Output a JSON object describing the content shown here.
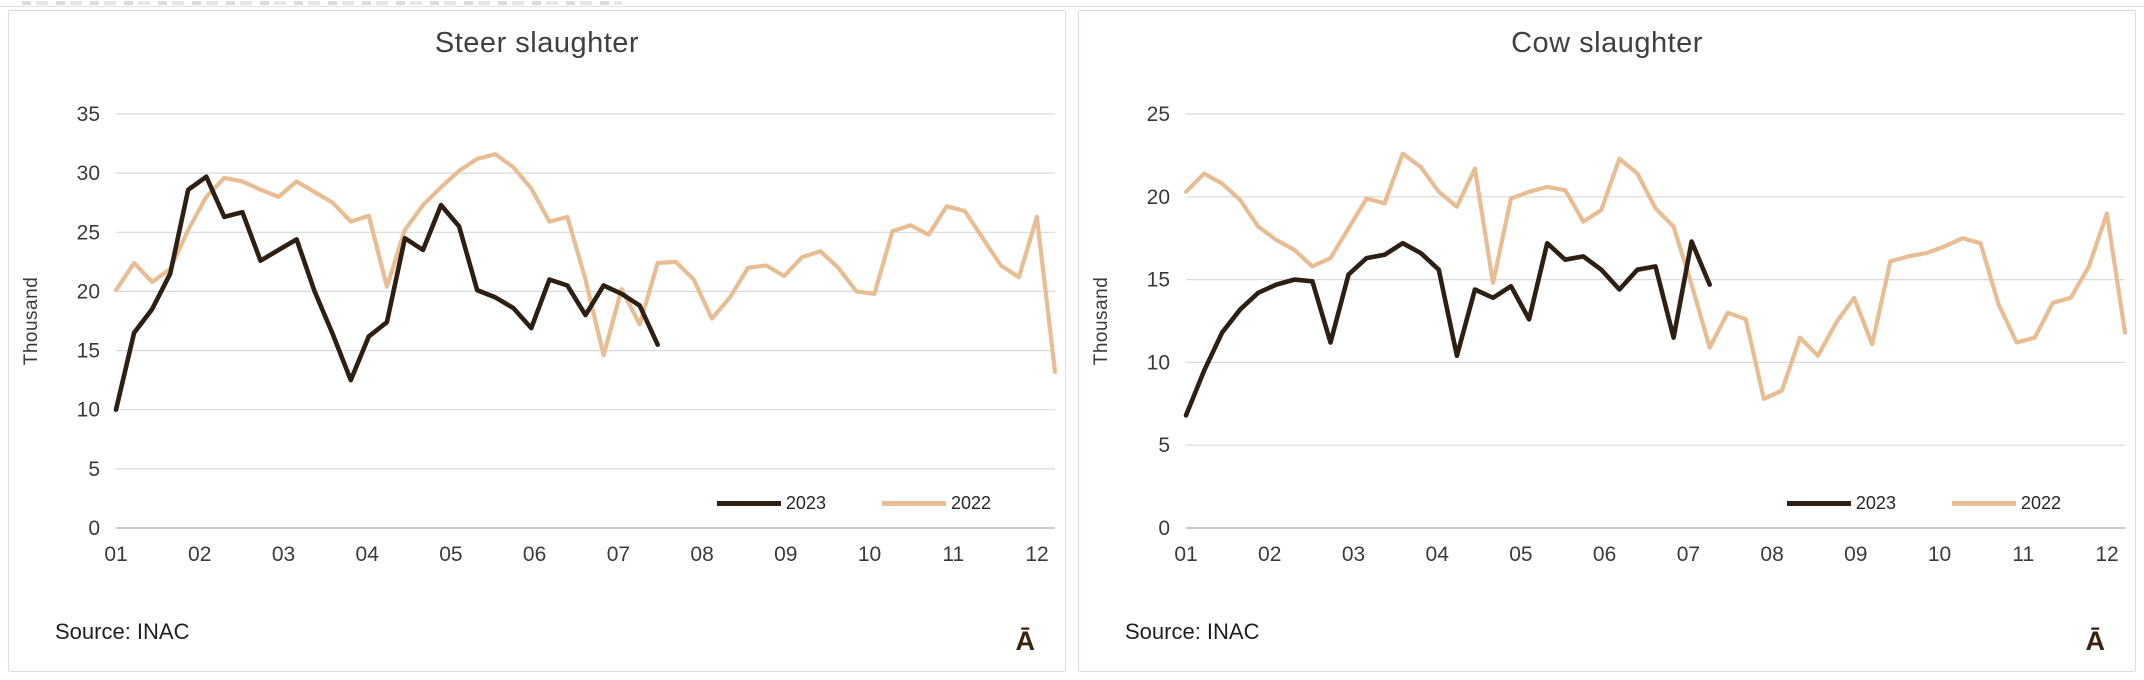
{
  "panels": [
    {
      "title": "Steer slaughter",
      "source": "Source: INAC",
      "logo_glyph": "Ā"
    },
    {
      "title": "Cow slaughter",
      "source": "Source: INAC",
      "logo_glyph": "Ā"
    }
  ],
  "chart_data": [
    {
      "type": "line",
      "title": "Steer slaughter",
      "ylabel": "Thousand",
      "xlabel": "",
      "ylim": [
        0,
        35
      ],
      "yticks": [
        0,
        5,
        10,
        15,
        20,
        25,
        30,
        35
      ],
      "x_categories": [
        "01",
        "02",
        "03",
        "04",
        "05",
        "06",
        "07",
        "08",
        "09",
        "10",
        "11",
        "12"
      ],
      "x_resolution": "weekly",
      "weeks_span": 53,
      "grid": "horizontal",
      "grid_color": "#d9d9d9",
      "axis_color": "#bfbfbf",
      "legend_position": "inside-bottom-right",
      "source": "Source: INAC",
      "series": [
        {
          "name": "2023",
          "color": "#2d2013",
          "values": [
            10.0,
            16.5,
            18.5,
            21.5,
            28.6,
            29.7,
            26.3,
            26.7,
            22.6,
            23.5,
            24.4,
            20.0,
            16.4,
            12.5,
            16.2,
            17.4,
            24.5,
            23.5,
            27.3,
            25.5,
            20.1,
            19.5,
            18.6,
            16.9,
            21.0,
            20.5,
            18.0,
            20.5,
            19.8,
            18.8,
            15.5
          ]
        },
        {
          "name": "2022",
          "color": "#e9bd93",
          "values": [
            20.1,
            22.4,
            20.8,
            21.9,
            25.2,
            28.0,
            29.6,
            29.3,
            28.6,
            28.0,
            29.3,
            28.4,
            27.5,
            25.9,
            26.4,
            20.4,
            25.2,
            27.3,
            28.8,
            30.2,
            31.2,
            31.6,
            30.5,
            28.7,
            25.9,
            26.3,
            21.0,
            14.6,
            20.2,
            17.2,
            22.4,
            22.5,
            21.0,
            17.7,
            19.5,
            22.0,
            22.2,
            21.3,
            22.9,
            23.4,
            22.0,
            20.0,
            19.8,
            25.1,
            25.6,
            24.8,
            27.2,
            26.8,
            24.5,
            22.2,
            21.2,
            26.3,
            13.2
          ]
        }
      ]
    },
    {
      "type": "line",
      "title": "Cow slaughter",
      "ylabel": "Thousand",
      "xlabel": "",
      "ylim": [
        0,
        25
      ],
      "yticks": [
        0,
        5,
        10,
        15,
        20,
        25
      ],
      "x_categories": [
        "01",
        "02",
        "03",
        "04",
        "05",
        "06",
        "07",
        "08",
        "09",
        "10",
        "11",
        "12"
      ],
      "x_resolution": "weekly",
      "weeks_span": 53,
      "grid": "horizontal",
      "grid_color": "#d9d9d9",
      "axis_color": "#bfbfbf",
      "legend_position": "inside-bottom-right",
      "source": "Source: INAC",
      "series": [
        {
          "name": "2023",
          "color": "#2d2013",
          "values": [
            6.8,
            9.5,
            11.8,
            13.2,
            14.2,
            14.7,
            15.0,
            14.9,
            11.2,
            15.3,
            16.3,
            16.5,
            17.2,
            16.6,
            15.6,
            10.4,
            14.4,
            13.9,
            14.6,
            12.6,
            17.2,
            16.2,
            16.4,
            15.6,
            14.4,
            15.6,
            15.8,
            11.5,
            17.3,
            14.7
          ]
        },
        {
          "name": "2022",
          "color": "#e9bd93",
          "values": [
            20.3,
            21.4,
            20.8,
            19.8,
            18.2,
            17.4,
            16.8,
            15.8,
            16.3,
            18.1,
            19.9,
            19.6,
            22.6,
            21.8,
            20.3,
            19.4,
            21.7,
            14.8,
            19.9,
            20.3,
            20.6,
            20.4,
            18.5,
            19.2,
            22.3,
            21.4,
            19.3,
            18.2,
            14.7,
            10.9,
            13.0,
            12.6,
            7.8,
            8.3,
            11.5,
            10.4,
            12.4,
            13.9,
            11.1,
            16.1,
            16.4,
            16.6,
            17.0,
            17.5,
            17.2,
            13.5,
            11.2,
            11.5,
            13.6,
            13.9,
            15.8,
            19.0,
            11.8
          ]
        }
      ]
    }
  ]
}
